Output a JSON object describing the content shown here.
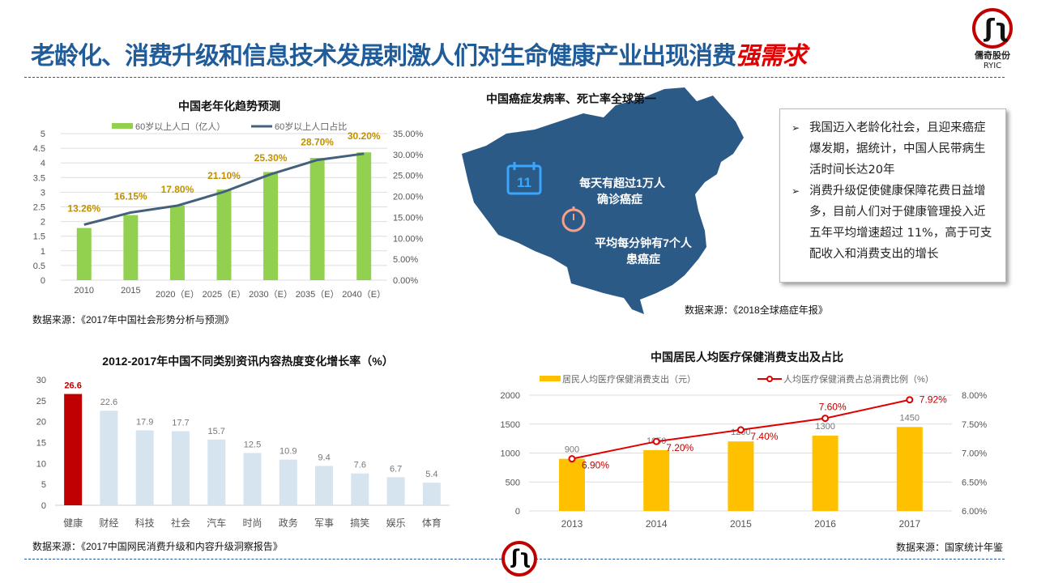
{
  "header": {
    "title_main": "老龄化、消费升级和信息技术发展刺激人们对生命健康产业出现消费",
    "title_emphasis": "强需求"
  },
  "logo": {
    "glyph": "ʃ|ʅ",
    "cn": "儒奇股份",
    "en": "RYIC"
  },
  "colors": {
    "brand": "#1F5C99",
    "accent": "#E00000",
    "green": "#92D050",
    "line": "#44617B",
    "gold": "#C09000",
    "red_bar": "#C00000",
    "light_bar": "#D6E4F0",
    "yellow": "#FFC000",
    "red_line": "#E00000",
    "map": "#2B5A87"
  },
  "chart_data": [
    {
      "type": "bar",
      "id": "aging",
      "title": "中国老年化趋势预测",
      "categories": [
        "2010",
        "2015",
        "2020（E）",
        "2025（E）",
        "2030（E）",
        "2035（E）",
        "2040（E）"
      ],
      "series": [
        {
          "name": "60岁以上人口（亿人）",
          "type": "bar",
          "axis": "left",
          "values": [
            1.78,
            2.22,
            2.55,
            3.09,
            3.69,
            4.17,
            4.36
          ]
        },
        {
          "name": "60岁以上人口占比",
          "type": "line",
          "axis": "right",
          "values": [
            13.26,
            16.15,
            17.8,
            21.1,
            25.3,
            28.7,
            30.2
          ],
          "labels": [
            "13.26%",
            "16.15%",
            "17.80%",
            "21.10%",
            "25.30%",
            "28.70%",
            "30.20%"
          ]
        }
      ],
      "ylim": [
        0,
        5
      ],
      "yticks": [
        "0",
        "0.5",
        "1",
        "1.5",
        "2",
        "2.5",
        "3",
        "3.5",
        "4",
        "4.5",
        "5"
      ],
      "y2lim": [
        0,
        35
      ],
      "y2ticks": [
        "0.00%",
        "5.00%",
        "10.00%",
        "15.00%",
        "20.00%",
        "25.00%",
        "30.00%",
        "35.00%"
      ],
      "legend": "top",
      "grid": true,
      "source": "数据来源：《2017年中国社会形势分析与预测》"
    },
    {
      "type": "bar",
      "id": "news",
      "title": "2012-2017年中国不同类别资讯内容热度变化增长率（%）",
      "categories": [
        "健康",
        "财经",
        "科技",
        "社会",
        "汽车",
        "时尚",
        "政务",
        "军事",
        "搞笑",
        "娱乐",
        "体育"
      ],
      "values": [
        26.6,
        22.6,
        17.9,
        17.7,
        15.7,
        12.5,
        10.9,
        9.4,
        7.6,
        6.7,
        5.4
      ],
      "ylim": [
        0,
        30
      ],
      "yticks": [
        "0",
        "5",
        "10",
        "15",
        "20",
        "25",
        "30"
      ],
      "grid": false,
      "source": "数据来源：《2017中国网民消费升级和内容升级洞察报告》"
    },
    {
      "type": "bar",
      "id": "medical",
      "title": "中国居民人均医疗保健消费支出及占比",
      "categories": [
        "2013",
        "2014",
        "2015",
        "2016",
        "2017"
      ],
      "series": [
        {
          "name": "居民人均医疗保健消费支出（元）",
          "type": "bar",
          "axis": "left",
          "values": [
            900,
            1050,
            1200,
            1300,
            1450
          ]
        },
        {
          "name": "人均医疗保健消费占总消费比例（%）",
          "type": "line",
          "axis": "right",
          "values": [
            6.9,
            7.2,
            7.4,
            7.6,
            7.92
          ],
          "labels": [
            "6.90%",
            "7.20%",
            "7.40%",
            "7.60%",
            "7.92%"
          ]
        }
      ],
      "ylim": [
        0,
        2000
      ],
      "yticks": [
        "0",
        "500",
        "1000",
        "1500",
        "2000"
      ],
      "y2lim": [
        6,
        8
      ],
      "y2ticks": [
        "6.00%",
        "6.50%",
        "7.00%",
        "7.50%",
        "8.00%"
      ],
      "legend": "top",
      "grid": true,
      "source": "数据来源：国家统计年鉴"
    }
  ],
  "map": {
    "title": "中国癌症发病率、死亡率全球第一",
    "calendar_number": "11",
    "fact1_line1": "每天有超过1万人",
    "fact1_line2": "确诊癌症",
    "fact2_line1": "平均每分钟有7个人",
    "fact2_line2": "患癌症",
    "source": "数据来源：《2018全球癌症年报》"
  },
  "textbox": {
    "items": [
      {
        "bullet": "➢",
        "text": "我国迈入老龄化社会，且迎来癌症爆发期，据统计，中国人民带病生活时间长达20年"
      },
      {
        "bullet": "➢",
        "text": "消费升级促使健康保障花费日益增多，目前人们对于健康管理投入近五年平均增速超过 11%，高于可支配收入和消费支出的增长"
      }
    ]
  }
}
